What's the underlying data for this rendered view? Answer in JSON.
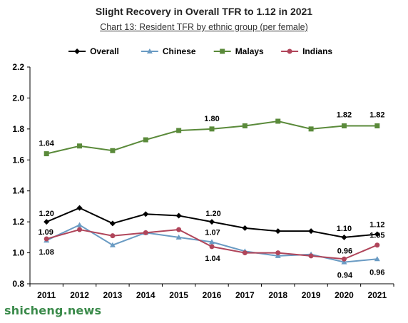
{
  "chart_data": {
    "type": "line",
    "title": "Slight Recovery in Overall TFR to 1.12 in 2021",
    "subtitle": "Chart 13: Resident TFR by ethnic group (per female)",
    "categories": [
      "2011",
      "2012",
      "2013",
      "2014",
      "2015",
      "2016",
      "2017",
      "2018",
      "2019",
      "2020",
      "2021"
    ],
    "ylim": [
      0.8,
      2.2
    ],
    "yticks": [
      "0.8",
      "1.0",
      "1.2",
      "1.4",
      "1.6",
      "1.8",
      "2.0",
      "2.2"
    ],
    "grid": false,
    "legend_position": "top",
    "series": [
      {
        "name": "Overall",
        "color": "#000000",
        "marker": "diamond",
        "values": [
          1.2,
          1.29,
          1.19,
          1.25,
          1.24,
          1.2,
          1.16,
          1.14,
          1.14,
          1.1,
          1.12
        ]
      },
      {
        "name": "Chinese",
        "color": "#6a9bc3",
        "marker": "triangle",
        "values": [
          1.08,
          1.18,
          1.05,
          1.13,
          1.1,
          1.07,
          1.01,
          0.98,
          0.99,
          0.94,
          0.96
        ]
      },
      {
        "name": "Malays",
        "color": "#5a8a3a",
        "marker": "square",
        "values": [
          1.64,
          1.69,
          1.66,
          1.73,
          1.79,
          1.8,
          1.82,
          1.85,
          1.8,
          1.82,
          1.82
        ]
      },
      {
        "name": "Indians",
        "color": "#b0455a",
        "marker": "circle",
        "values": [
          1.09,
          1.15,
          1.11,
          1.13,
          1.15,
          1.04,
          1.0,
          1.0,
          0.98,
          0.96,
          1.05
        ]
      }
    ],
    "annotations": [
      {
        "series": "Malays",
        "year": "2011",
        "text": "1.64"
      },
      {
        "series": "Malays",
        "year": "2016",
        "text": "1.80"
      },
      {
        "series": "Malays",
        "year": "2020",
        "text": "1.82"
      },
      {
        "series": "Malays",
        "year": "2021",
        "text": "1.82"
      },
      {
        "series": "Overall",
        "year": "2011",
        "text": "1.20"
      },
      {
        "series": "Overall",
        "year": "2016",
        "text": "1.20"
      },
      {
        "series": "Overall",
        "year": "2020",
        "text": "1.10"
      },
      {
        "series": "Overall",
        "year": "2021",
        "text": "1.12"
      },
      {
        "series": "Indians",
        "year": "2011",
        "text": "1.09"
      },
      {
        "series": "Chinese",
        "year": "2011",
        "text": "1.08"
      },
      {
        "series": "Chinese",
        "year": "2016",
        "text": "1.07"
      },
      {
        "series": "Indians",
        "year": "2016",
        "text": "1.04"
      },
      {
        "series": "Indians",
        "year": "2020",
        "text": "0.96"
      },
      {
        "series": "Chinese",
        "year": "2020",
        "text": "0.94"
      },
      {
        "series": "Indians",
        "year": "2021",
        "text": "1.05"
      },
      {
        "series": "Chinese",
        "year": "2021",
        "text": "0.96"
      }
    ]
  },
  "watermark": "shicheng.news"
}
